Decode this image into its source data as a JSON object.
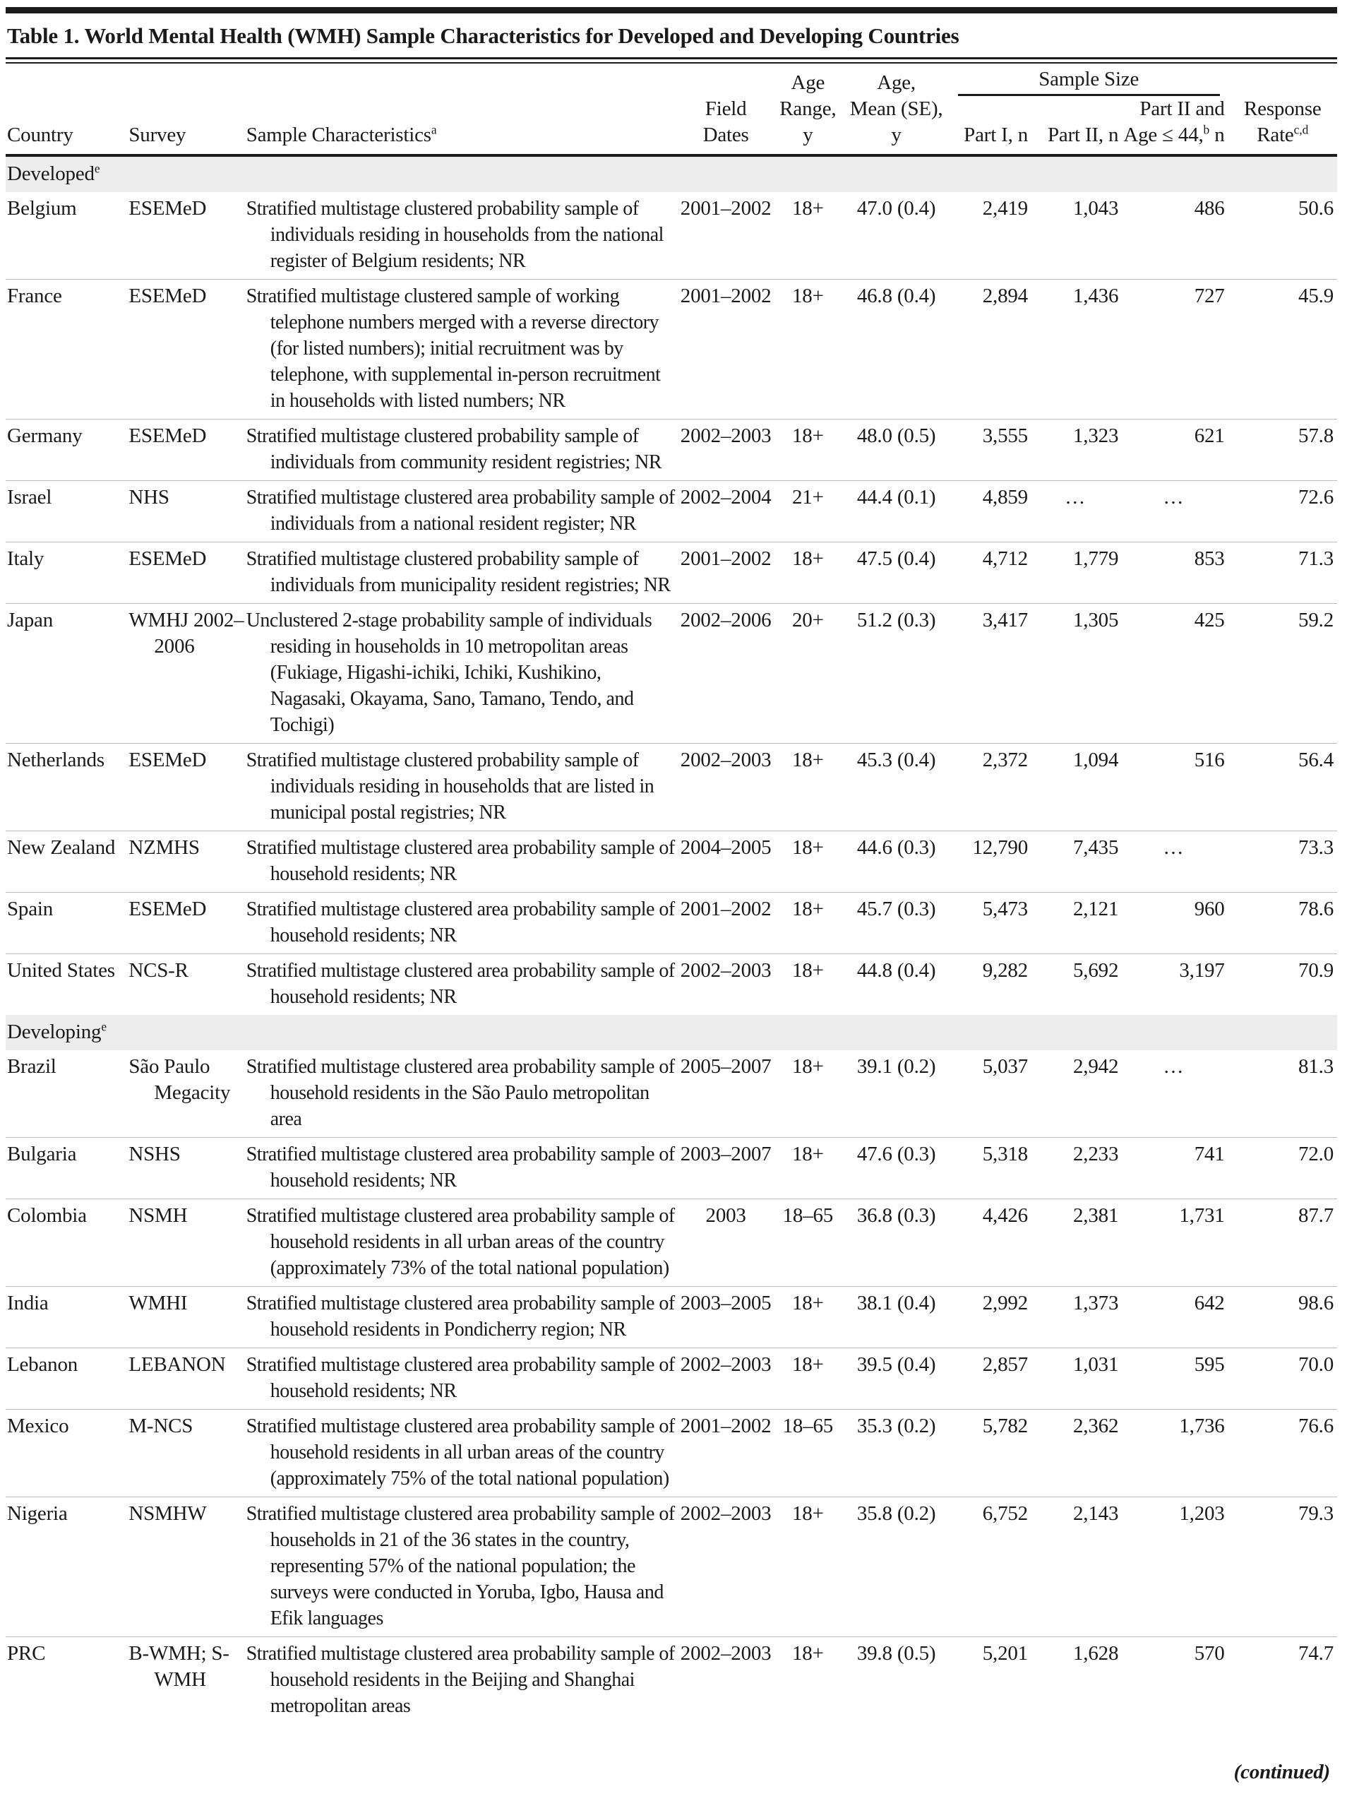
{
  "title": "Table 1. World Mental Health (WMH) Sample Characteristics for Developed and Developing Countries",
  "continued_note": "(continued)",
  "table": {
    "headers": {
      "country": "Country",
      "survey": "Survey",
      "sample_characteristics": "Sample Characteristics",
      "sample_characteristics_marker": "a",
      "field_dates_lines": [
        "Field",
        "Dates"
      ],
      "age_range_lines": [
        "Age",
        "Range, y"
      ],
      "age_mean_lines": [
        "Age,",
        "Mean (SE),",
        "y"
      ],
      "sample_size": "Sample Size",
      "part1": "Part I, n",
      "part2": "Part II, n",
      "part2_age_line1": "Part II and",
      "part2_age_line2_pre": "Age ≤ 44,",
      "part2_age_marker": "b",
      "part2_age_line2_post": " n",
      "response_line1": "Response",
      "response_line2_pre": "Rate",
      "response_marker": "c,d"
    },
    "sections": [
      {
        "label": "Developed",
        "marker": "e",
        "rows": [
          {
            "country": "Belgium",
            "survey": "ESEMeD",
            "characteristics": "Stratified multistage clustered probability sample of individuals residing in households from the national register of Belgium residents; NR",
            "field_dates": "2001–2002",
            "age_range": "18+",
            "age_mean": "47.0 (0.4)",
            "part1": "2,419",
            "part2": "1,043",
            "part2_age44": "486",
            "response": "50.6"
          },
          {
            "country": "France",
            "survey": "ESEMeD",
            "characteristics": "Stratified multistage clustered sample of working telephone numbers merged with a reverse directory (for listed numbers); initial recruitment was by telephone, with supplemental in-person recruitment in households with listed numbers; NR",
            "field_dates": "2001–2002",
            "age_range": "18+",
            "age_mean": "46.8 (0.4)",
            "part1": "2,894",
            "part2": "1,436",
            "part2_age44": "727",
            "response": "45.9"
          },
          {
            "country": "Germany",
            "survey": "ESEMeD",
            "characteristics": "Stratified multistage clustered probability sample of individuals from community resident registries; NR",
            "field_dates": "2002–2003",
            "age_range": "18+",
            "age_mean": "48.0 (0.5)",
            "part1": "3,555",
            "part2": "1,323",
            "part2_age44": "621",
            "response": "57.8"
          },
          {
            "country": "Israel",
            "survey": "NHS",
            "characteristics": "Stratified multistage clustered area probability sample of individuals from a national resident register; NR",
            "field_dates": "2002–2004",
            "age_range": "21+",
            "age_mean": "44.4 (0.1)",
            "part1": "4,859",
            "part2": "…",
            "part2_age44": "…",
            "response": "72.6"
          },
          {
            "country": "Italy",
            "survey": "ESEMeD",
            "characteristics": "Stratified multistage clustered probability sample of individuals from municipality resident registries; NR",
            "field_dates": "2001–2002",
            "age_range": "18+",
            "age_mean": "47.5 (0.4)",
            "part1": "4,712",
            "part2": "1,779",
            "part2_age44": "853",
            "response": "71.3"
          },
          {
            "country": "Japan",
            "survey": "WMHJ 2002–2006",
            "characteristics": "Unclustered 2-stage probability sample of individuals residing in households in 10 metropolitan areas (Fukiage, Higashi-ichiki, Ichiki, Kushikino, Nagasaki, Okayama, Sano, Tamano, Tendo, and Tochigi)",
            "field_dates": "2002–2006",
            "age_range": "20+",
            "age_mean": "51.2 (0.3)",
            "part1": "3,417",
            "part2": "1,305",
            "part2_age44": "425",
            "response": "59.2"
          },
          {
            "country": "Netherlands",
            "survey": "ESEMeD",
            "characteristics": "Stratified multistage clustered probability sample of individuals residing in households that are listed in municipal postal registries; NR",
            "field_dates": "2002–2003",
            "age_range": "18+",
            "age_mean": "45.3 (0.4)",
            "part1": "2,372",
            "part2": "1,094",
            "part2_age44": "516",
            "response": "56.4"
          },
          {
            "country": "New Zealand",
            "survey": "NZMHS",
            "characteristics": "Stratified multistage clustered area probability sample of household residents; NR",
            "field_dates": "2004–2005",
            "age_range": "18+",
            "age_mean": "44.6 (0.3)",
            "part1": "12,790",
            "part2": "7,435",
            "part2_age44": "…",
            "response": "73.3"
          },
          {
            "country": "Spain",
            "survey": "ESEMeD",
            "characteristics": "Stratified multistage clustered area probability sample of household residents; NR",
            "field_dates": "2001–2002",
            "age_range": "18+",
            "age_mean": "45.7 (0.3)",
            "part1": "5,473",
            "part2": "2,121",
            "part2_age44": "960",
            "response": "78.6"
          },
          {
            "country": "United States",
            "survey": "NCS-R",
            "characteristics": "Stratified multistage clustered area probability sample of household residents; NR",
            "field_dates": "2002–2003",
            "age_range": "18+",
            "age_mean": "44.8 (0.4)",
            "part1": "9,282",
            "part2": "5,692",
            "part2_age44": "3,197",
            "response": "70.9"
          }
        ]
      },
      {
        "label": "Developing",
        "marker": "e",
        "rows": [
          {
            "country": "Brazil",
            "survey": "São Paulo Megacity",
            "characteristics": "Stratified multistage clustered area probability sample of household residents in the São Paulo metropolitan area",
            "field_dates": "2005–2007",
            "age_range": "18+",
            "age_mean": "39.1 (0.2)",
            "part1": "5,037",
            "part2": "2,942",
            "part2_age44": "…",
            "response": "81.3"
          },
          {
            "country": "Bulgaria",
            "survey": "NSHS",
            "characteristics": "Stratified multistage clustered area probability sample of household residents; NR",
            "field_dates": "2003–2007",
            "age_range": "18+",
            "age_mean": "47.6 (0.3)",
            "part1": "5,318",
            "part2": "2,233",
            "part2_age44": "741",
            "response": "72.0"
          },
          {
            "country": "Colombia",
            "survey": "NSMH",
            "characteristics": "Stratified multistage clustered area probability sample of household residents in all urban areas of the country (approximately 73% of the total national population)",
            "field_dates": "2003",
            "age_range": "18–65",
            "age_mean": "36.8 (0.3)",
            "part1": "4,426",
            "part2": "2,381",
            "part2_age44": "1,731",
            "response": "87.7"
          },
          {
            "country": "India",
            "survey": "WMHI",
            "characteristics": "Stratified multistage clustered area probability sample of household residents in Pondicherry region; NR",
            "field_dates": "2003–2005",
            "age_range": "18+",
            "age_mean": "38.1 (0.4)",
            "part1": "2,992",
            "part2": "1,373",
            "part2_age44": "642",
            "response": "98.6"
          },
          {
            "country": "Lebanon",
            "survey": "LEBANON",
            "characteristics": "Stratified multistage clustered area probability sample of household residents; NR",
            "field_dates": "2002–2003",
            "age_range": "18+",
            "age_mean": "39.5 (0.4)",
            "part1": "2,857",
            "part2": "1,031",
            "part2_age44": "595",
            "response": "70.0"
          },
          {
            "country": "Mexico",
            "survey": "M-NCS",
            "characteristics": "Stratified multistage clustered area probability sample of household residents in all urban areas of the country (approximately 75% of the total national population)",
            "field_dates": "2001–2002",
            "age_range": "18–65",
            "age_mean": "35.3 (0.2)",
            "part1": "5,782",
            "part2": "2,362",
            "part2_age44": "1,736",
            "response": "76.6"
          },
          {
            "country": "Nigeria",
            "survey": "NSMHW",
            "characteristics": "Stratified multistage clustered area probability sample of households in 21 of the 36 states in the country, representing 57% of the national population; the surveys were conducted in Yoruba, Igbo, Hausa and Efik languages",
            "field_dates": "2002–2003",
            "age_range": "18+",
            "age_mean": "35.8 (0.2)",
            "part1": "6,752",
            "part2": "2,143",
            "part2_age44": "1,203",
            "response": "79.3"
          },
          {
            "country": "PRC",
            "survey": "B-WMH; S-WMH",
            "characteristics": "Stratified multistage clustered area probability sample of household residents in the Beijing and Shanghai metropolitan areas",
            "field_dates": "2002–2003",
            "age_range": "18+",
            "age_mean": "39.8 (0.5)",
            "part1": "5,201",
            "part2": "1,628",
            "part2_age44": "570",
            "response": "74.7"
          }
        ]
      }
    ]
  }
}
